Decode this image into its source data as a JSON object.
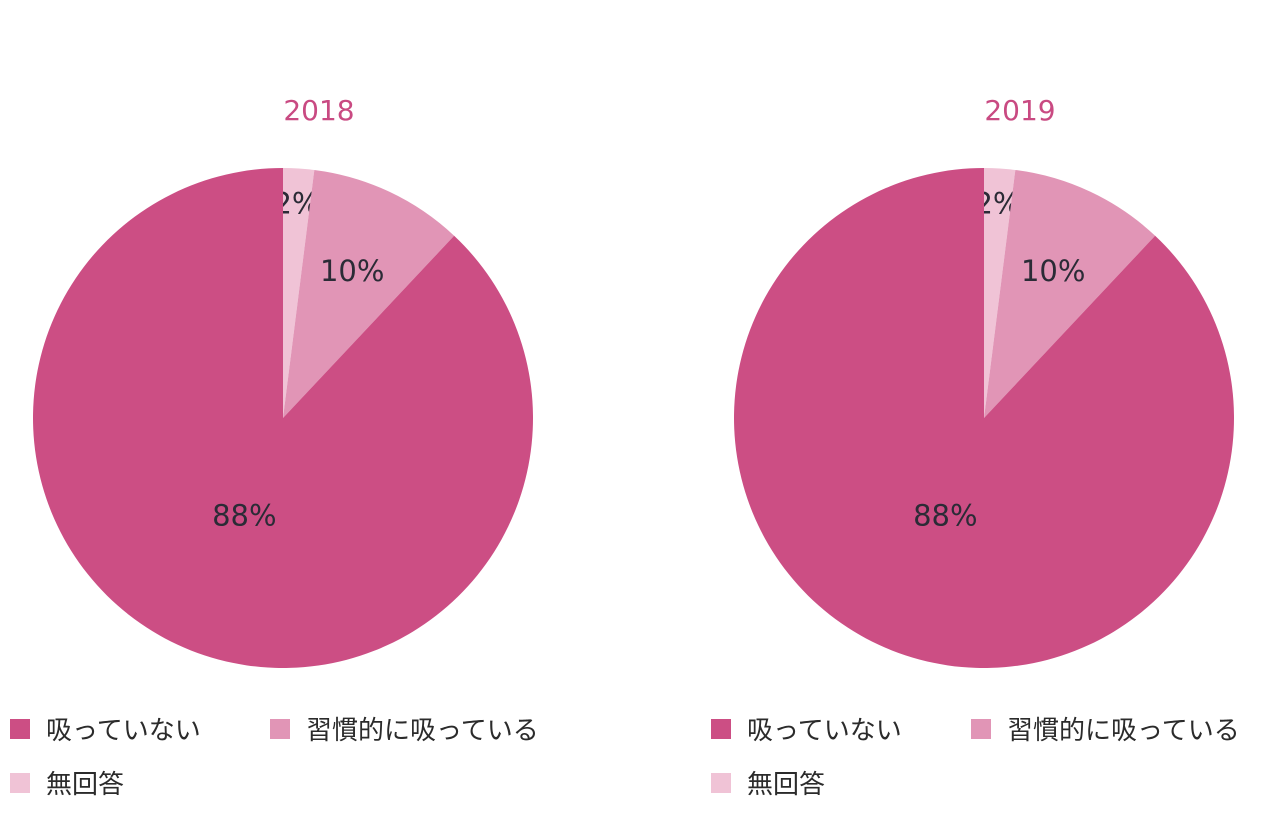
{
  "colors": {
    "not_smoking": "#cc4e84",
    "habitual": "#e195b6",
    "no_answer": "#f0c3d6",
    "title": "#c94a82",
    "label_text": "#2b2b36"
  },
  "chart_data": [
    {
      "type": "pie",
      "title": "2018",
      "slices": [
        {
          "name": "無回答",
          "value": 2,
          "label": "2%",
          "color": "#f0c3d6"
        },
        {
          "name": "習慣的に吸っている",
          "value": 10,
          "label": "10%",
          "color": "#e195b6"
        },
        {
          "name": "吸っていない",
          "value": 88,
          "label": "88%",
          "color": "#cc4e84"
        }
      ],
      "legend": [
        {
          "label": "吸っていない",
          "color": "#cc4e84"
        },
        {
          "label": "習慣的に吸っている",
          "color": "#e195b6"
        },
        {
          "label": "無回答",
          "color": "#f0c3d6"
        }
      ],
      "start_angle": "12 o'clock",
      "direction": "clockwise",
      "legend_position": "bottom"
    },
    {
      "type": "pie",
      "title": "2019",
      "slices": [
        {
          "name": "無回答",
          "value": 2,
          "label": "2%",
          "color": "#f0c3d6"
        },
        {
          "name": "習慣的に吸っている",
          "value": 10,
          "label": "10%",
          "color": "#e195b6"
        },
        {
          "name": "吸っていない",
          "value": 88,
          "label": "88%",
          "color": "#cc4e84"
        }
      ],
      "legend": [
        {
          "label": "吸っていない",
          "color": "#cc4e84"
        },
        {
          "label": "習慣的に吸っている",
          "color": "#e195b6"
        },
        {
          "label": "無回答",
          "color": "#f0c3d6"
        }
      ],
      "start_angle": "12 o'clock",
      "direction": "clockwise",
      "legend_position": "bottom"
    }
  ]
}
